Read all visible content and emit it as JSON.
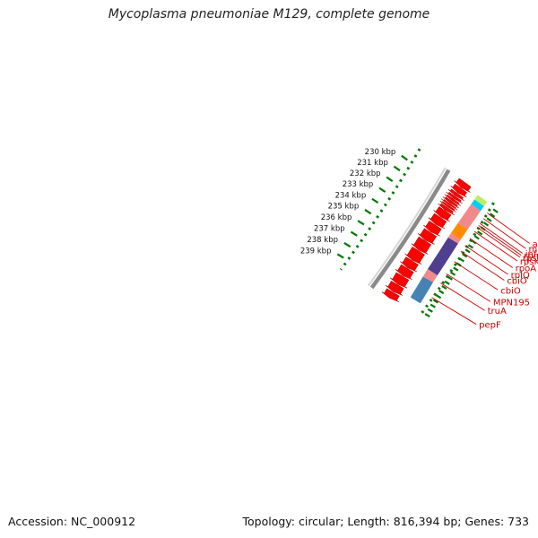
{
  "title": "Mycoplasma pneumoniae M129, complete genome",
  "footer": {
    "accession": "Accession: NC_000912",
    "summary": "Topology: circular; Length: 816,394 bp; Genes: 733"
  },
  "colors": {
    "backbone": "#8a8a8a",
    "forward_cds": "#ff0000",
    "tick": "#007700",
    "label": "#cc0000"
  },
  "scale": {
    "labels": [
      "230 kbp",
      "231 kbp",
      "232 kbp",
      "233 kbp",
      "234 kbp",
      "235 kbp",
      "236 kbp",
      "237 kbp",
      "238 kbp",
      "239 kbp"
    ]
  },
  "band_segments": [
    {
      "color": "#b8f060",
      "start": 229.0,
      "end": 229.45
    },
    {
      "color": "#00ccff",
      "start": 229.45,
      "end": 229.92
    },
    {
      "color": "#f08a8a",
      "start": 229.92,
      "end": 231.8
    },
    {
      "color": "#ff8c00",
      "start": 231.8,
      "end": 232.8
    },
    {
      "color": "#f08a8a",
      "start": 232.8,
      "end": 233.2
    },
    {
      "color": "#4f3f8f",
      "start": 233.2,
      "end": 236.3
    },
    {
      "color": "#f08a8a",
      "start": 236.3,
      "end": 237.0
    },
    {
      "color": "#4682b4",
      "start": 237.0,
      "end": 239.0
    }
  ],
  "genes": [
    {
      "name": "adk",
      "pos": 229.75
    },
    {
      "name": "map",
      "pos": 230.3
    },
    {
      "name": "infA",
      "pos": 230.8
    },
    {
      "name": "rpmJ",
      "pos": 231.0
    },
    {
      "name": "rpsM",
      "pos": 231.2
    },
    {
      "name": "rpsK",
      "pos": 231.6
    },
    {
      "name": "rpoA",
      "pos": 232.3
    },
    {
      "name": "rplQ",
      "pos": 233.0
    },
    {
      "name": "cbiO",
      "pos": 233.6
    },
    {
      "name": "cbiO",
      "pos": 234.6
    },
    {
      "name": "MPN195",
      "pos": 235.8
    },
    {
      "name": "truA",
      "pos": 236.7
    },
    {
      "name": "pepF",
      "pos": 238.1
    }
  ]
}
